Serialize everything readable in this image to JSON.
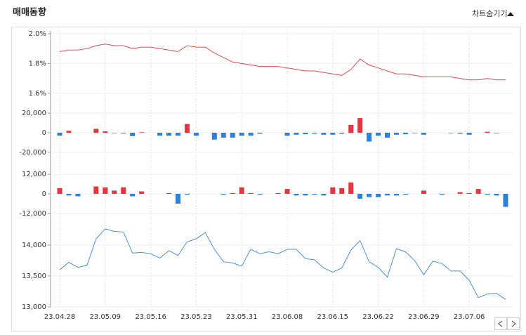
{
  "header": {
    "title": "매매동향",
    "toggle": "차트숨기기"
  },
  "chart_data": [
    {
      "type": "line",
      "color": "#e8474c",
      "ylim": [
        1.58,
        2.0
      ],
      "yticks": [
        {
          "value": 2.0,
          "label": "2.0%"
        },
        {
          "value": 1.8,
          "label": "1.8%"
        },
        {
          "value": 1.6,
          "label": "1.6%"
        }
      ],
      "grid": true,
      "values": [
        1.88,
        1.89,
        1.89,
        1.9,
        1.92,
        1.93,
        1.92,
        1.92,
        1.9,
        1.91,
        1.91,
        1.9,
        1.89,
        1.88,
        1.92,
        1.91,
        1.91,
        1.87,
        1.84,
        1.81,
        1.8,
        1.79,
        1.78,
        1.78,
        1.78,
        1.77,
        1.76,
        1.75,
        1.75,
        1.74,
        1.73,
        1.72,
        1.76,
        1.83,
        1.79,
        1.77,
        1.75,
        1.73,
        1.73,
        1.72,
        1.71,
        1.71,
        1.71,
        1.71,
        1.7,
        1.69,
        1.69,
        1.7,
        1.69,
        1.69
      ]
    },
    {
      "type": "bar",
      "up_color": "#e8343c",
      "down_color": "#2e7fd8",
      "ylim": [
        -28000,
        28000
      ],
      "yticks": [
        {
          "value": 20000,
          "label": "20,000"
        },
        0,
        {
          "value": -20000,
          "label": "-20,000"
        }
      ],
      "grid": true,
      "values": [
        -3000,
        2000,
        0,
        0,
        4000,
        1500,
        -500,
        -800,
        -3500,
        500,
        0,
        -3000,
        -3000,
        -3000,
        9000,
        -3000,
        0,
        -7000,
        -5000,
        -5000,
        -3000,
        -3000,
        -1000,
        0,
        0,
        -3000,
        -2000,
        -1500,
        -1000,
        -2000,
        -2000,
        -1000,
        8000,
        15000,
        -9000,
        -3000,
        -5000,
        -2000,
        -1500,
        -500,
        -2000,
        0,
        0,
        -500,
        -1000,
        -2000,
        0,
        1000,
        -500,
        0
      ]
    },
    {
      "type": "bar",
      "up_color": "#e8343c",
      "down_color": "#2e7fd8",
      "ylim": [
        -15500,
        15500
      ],
      "yticks": [
        {
          "value": 12000,
          "label": "12,000"
        },
        0,
        {
          "value": -12000,
          "label": "-12,000"
        }
      ],
      "grid": true,
      "values": [
        3500,
        -1000,
        -1500,
        0,
        4500,
        4000,
        2000,
        4000,
        -1500,
        1500,
        0,
        0,
        500,
        -6000,
        -500,
        0,
        0,
        0,
        -500,
        500,
        4000,
        500,
        -500,
        0,
        500,
        3000,
        -1000,
        -1000,
        -500,
        -1000,
        4000,
        3500,
        7000,
        -3000,
        -2000,
        -2000,
        -1000,
        -1000,
        -500,
        0,
        2000,
        0,
        -500,
        0,
        1000,
        500,
        3000,
        -500,
        -1000,
        -8000
      ]
    },
    {
      "type": "line",
      "color": "#4a90d9",
      "ylim": [
        13000,
        14350
      ],
      "yticks": [
        {
          "value": 14000,
          "label": "14,000"
        },
        {
          "value": 13500,
          "label": "13,500"
        },
        {
          "value": 13000,
          "label": "13,000"
        }
      ],
      "grid": true,
      "categories": [
        "23.04.28",
        null,
        null,
        null,
        null,
        "23.05.09",
        null,
        null,
        null,
        null,
        "23.05.16",
        null,
        null,
        null,
        null,
        "23.05.23",
        null,
        null,
        null,
        null,
        "23.05.31",
        null,
        null,
        null,
        null,
        "23.06.08",
        null,
        null,
        null,
        null,
        "23.06.15",
        null,
        null,
        null,
        null,
        "23.06.22",
        null,
        null,
        null,
        null,
        "23.06.29",
        null,
        null,
        null,
        null,
        "23.07.06",
        null,
        null,
        null,
        null
      ],
      "values": [
        13600,
        13720,
        13640,
        13670,
        14100,
        14260,
        14220,
        14210,
        13870,
        13880,
        13860,
        13790,
        13910,
        13830,
        14050,
        14100,
        14200,
        13930,
        13730,
        13710,
        13660,
        13930,
        13860,
        13890,
        13860,
        13930,
        13930,
        13780,
        13760,
        13630,
        13560,
        13630,
        13920,
        14070,
        13730,
        13640,
        13480,
        13940,
        13890,
        13750,
        13520,
        13740,
        13700,
        13580,
        13580,
        13430,
        13150,
        13210,
        13220,
        13120
      ]
    }
  ]
}
